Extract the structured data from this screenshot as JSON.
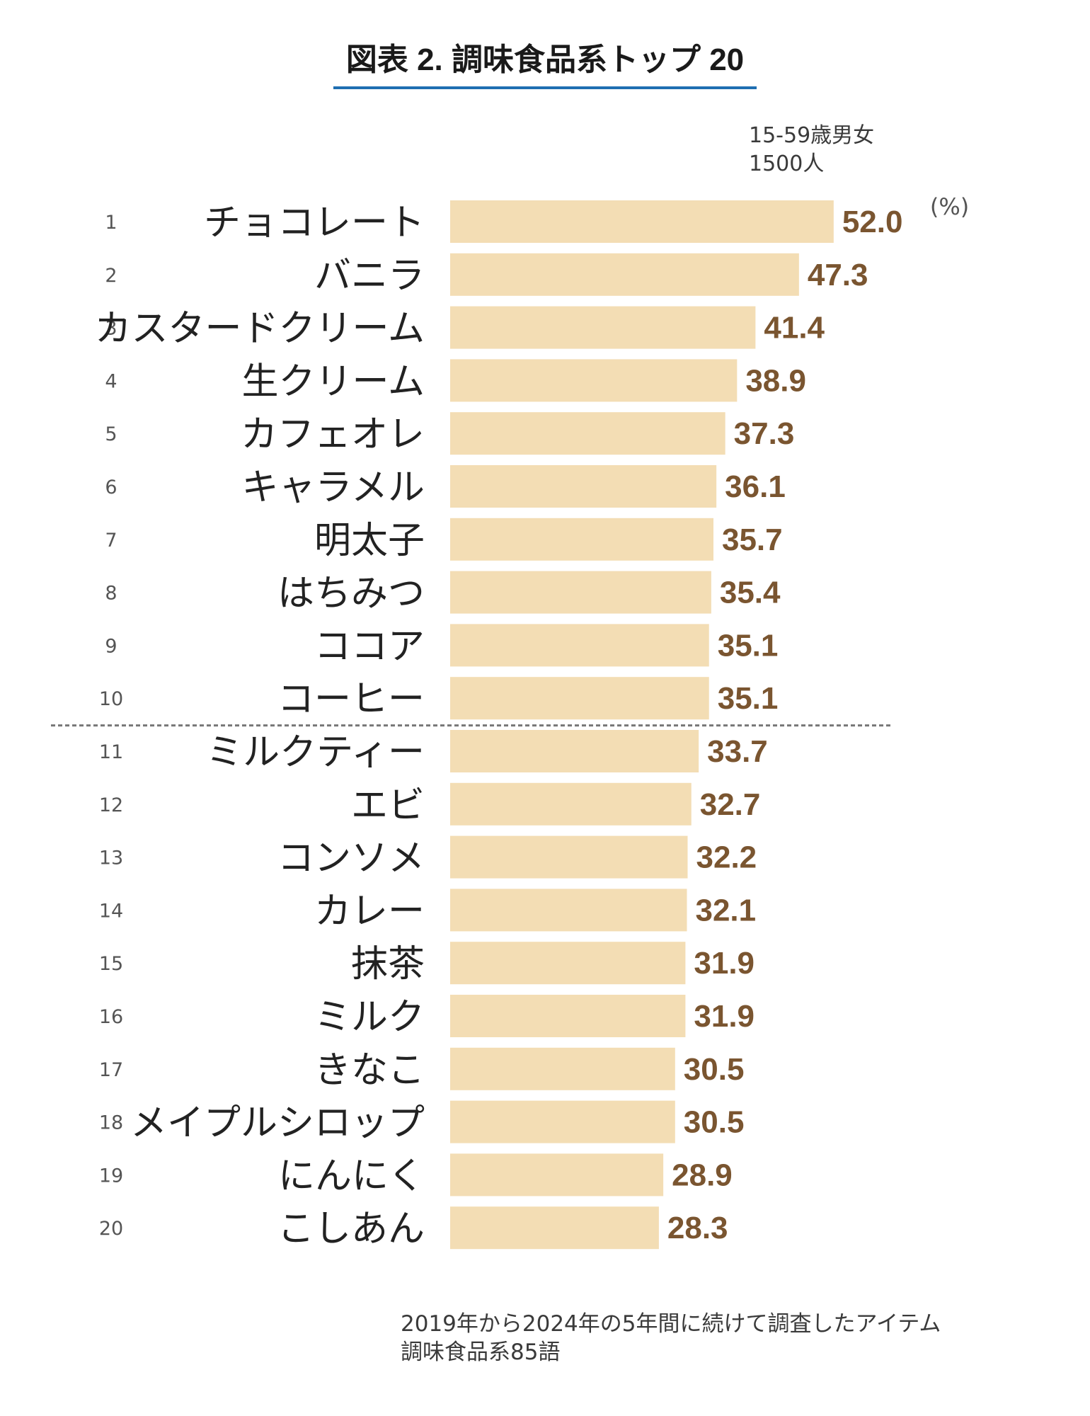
{
  "title": "図表 2. 調味食品系トップ 20",
  "note": [
    "15-59歳男女",
    "1500人"
  ],
  "footnote": [
    "2019年から2024年の5年間に続けて調査したアイテム",
    "調味食品系85語"
  ],
  "colors": {
    "bar": "#f3ddb4",
    "value": "#7a5530",
    "title_underline": "#1f6fb2"
  },
  "chart_data": {
    "type": "bar",
    "orientation": "horizontal",
    "unit": "(%)",
    "ranks": [
      "1",
      "2",
      "3",
      "4",
      "5",
      "6",
      "7",
      "8",
      "9",
      "10",
      "11",
      "12",
      "13",
      "14",
      "15",
      "16",
      "17",
      "18",
      "19",
      "20"
    ],
    "categories": [
      "チョコレート",
      "バニラ",
      "カスタードクリーム",
      "生クリーム",
      "カフェオレ",
      "キャラメル",
      "明太子",
      "はちみつ",
      "ココア",
      "コーヒー",
      "ミルクティー",
      "エビ",
      "コンソメ",
      "カレー",
      "抹茶",
      "ミルク",
      "きなこ",
      "メイプルシロップ",
      "にんにく",
      "こしあん"
    ],
    "values": [
      52.0,
      47.3,
      41.4,
      38.9,
      37.3,
      36.1,
      35.7,
      35.4,
      35.1,
      35.1,
      33.7,
      32.7,
      32.2,
      32.1,
      31.9,
      31.9,
      30.5,
      30.5,
      28.9,
      28.3
    ],
    "labels": [
      "52.0",
      "47.3",
      "41.4",
      "38.9",
      "37.3",
      "36.1",
      "35.7",
      "35.4",
      "35.1",
      "35.1",
      "33.7",
      "32.7",
      "32.2",
      "32.1",
      "31.9",
      "31.9",
      "30.5",
      "30.5",
      "28.9",
      "28.3"
    ],
    "divider_after_rank": 10
  }
}
